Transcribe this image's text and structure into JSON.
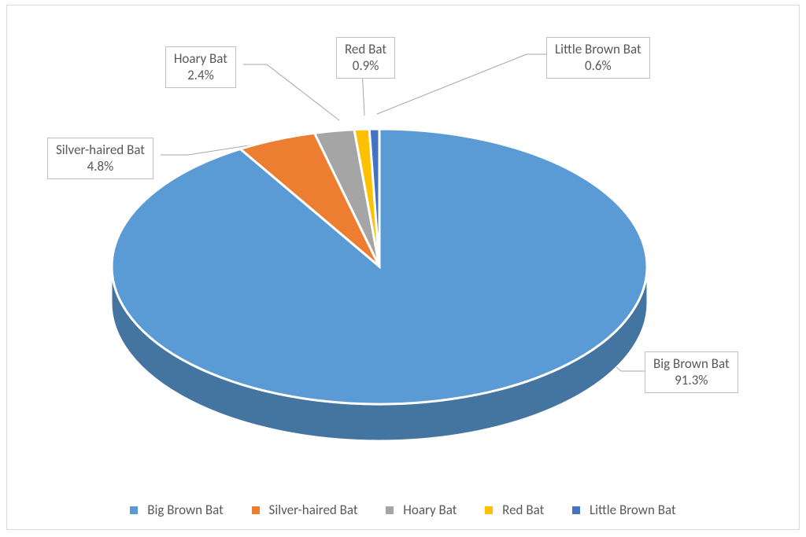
{
  "chart": {
    "type": "pie-3d",
    "background_color": "#ffffff",
    "border_color": "#d9d9d9",
    "label_border_color": "#bfbfbf",
    "label_text_color": "#595959",
    "label_fontsize": 17,
    "leader_color": "#a6a6a6",
    "slice_separator_color": "#ffffff",
    "slice_separator_width": 3,
    "depth_shade_factor": 0.75,
    "series": [
      {
        "name": "Big Brown Bat",
        "value": 91.3,
        "pct_label": "91.3%",
        "color": "#5b9bd5"
      },
      {
        "name": "Silver-haired Bat",
        "value": 4.8,
        "pct_label": "4.8%",
        "color": "#ed7d31"
      },
      {
        "name": "Hoary Bat",
        "value": 2.4,
        "pct_label": "2.4%",
        "color": "#a5a5a5"
      },
      {
        "name": "Red Bat",
        "value": 0.9,
        "pct_label": "0.9%",
        "color": "#ffc000"
      },
      {
        "name": "Little Brown Bat",
        "value": 0.6,
        "pct_label": "0.6%",
        "color": "#4472c4"
      }
    ],
    "legend": {
      "position": "bottom",
      "fontsize": 17,
      "text_color": "#595959"
    }
  }
}
